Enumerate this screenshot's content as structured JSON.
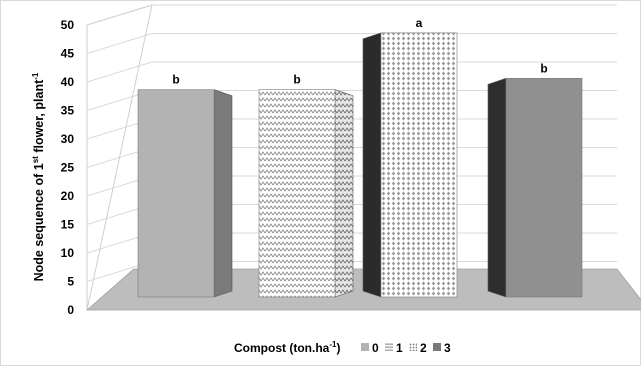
{
  "chart_data": {
    "type": "bar",
    "style": "3d",
    "categories": [
      "0",
      "1",
      "2",
      "3"
    ],
    "values": [
      36.5,
      36.5,
      46.5,
      38.5
    ],
    "letters": [
      "b",
      "b",
      "a",
      "b"
    ],
    "ylabel_parts": [
      "Node sequence of 1",
      "st",
      " flower, plant",
      "-1"
    ],
    "legend_title_parts": [
      "Compost (ton.ha",
      "-1",
      ")"
    ],
    "ylim": [
      0,
      50
    ],
    "yticks": [
      "0",
      "5",
      "10",
      "15",
      "20",
      "25",
      "30",
      "35",
      "40",
      "45",
      "50"
    ],
    "grid": true,
    "legend_position": "bottom",
    "colors": {
      "bar0_front": "#b3b3b3",
      "bar0_side": "#7a7a7a",
      "bar2_side": "#2b2b2b",
      "bar3_front": "#909090",
      "bar3_side": "#2e2e2e",
      "floor": "#bdbdbd"
    }
  }
}
